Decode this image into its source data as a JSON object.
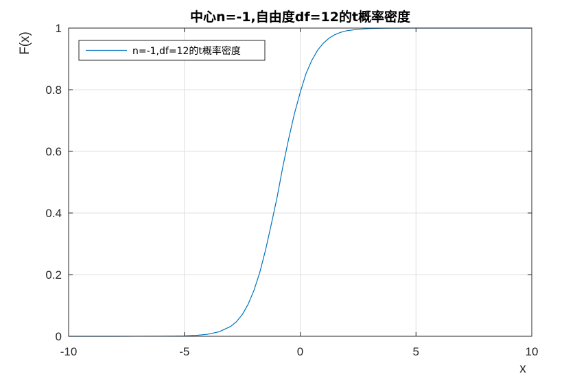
{
  "chart_data": {
    "type": "line",
    "title": "中心n=-1,自由度df=12的t概率密度",
    "xlabel": "x",
    "ylabel": "F(x)",
    "xlim": [
      -10,
      10
    ],
    "ylim": [
      0,
      1
    ],
    "xticks": [
      -10,
      -5,
      0,
      5,
      10
    ],
    "yticks": [
      0,
      0.2,
      0.4,
      0.6,
      0.8,
      1
    ],
    "xtick_labels": [
      "-10",
      "-5",
      "0",
      "5",
      "10"
    ],
    "ytick_labels": [
      "0",
      "0.2",
      "0.4",
      "0.6",
      "0.8",
      "1"
    ],
    "grid": true,
    "legend": {
      "position": "top-left",
      "entries": [
        "n=-1,df=12的t概率密度"
      ]
    },
    "series": [
      {
        "name": "n=-1,df=12的t概率密度",
        "color": "#0072bd",
        "x": [
          -10,
          -9,
          -8,
          -7,
          -6,
          -5.5,
          -5,
          -4.5,
          -4,
          -3.5,
          -3,
          -2.75,
          -2.5,
          -2.25,
          -2,
          -1.75,
          -1.5,
          -1.25,
          -1,
          -0.75,
          -0.5,
          -0.25,
          0,
          0.25,
          0.5,
          0.75,
          1,
          1.25,
          1.5,
          1.75,
          2,
          2.5,
          3,
          3.5,
          4,
          5,
          6,
          8,
          10
        ],
        "y": [
          0,
          0,
          0,
          0.0001,
          0.0002,
          0.0006,
          0.0012,
          0.0029,
          0.0065,
          0.0145,
          0.0321,
          0.0476,
          0.0706,
          0.1037,
          0.1482,
          0.206,
          0.2787,
          0.3628,
          0.45,
          0.55,
          0.64,
          0.722,
          0.791,
          0.852,
          0.895,
          0.928,
          0.951,
          0.9675,
          0.9787,
          0.9863,
          0.9912,
          0.9963,
          0.9985,
          0.9994,
          0.9998,
          1,
          1,
          1,
          1
        ]
      }
    ]
  }
}
